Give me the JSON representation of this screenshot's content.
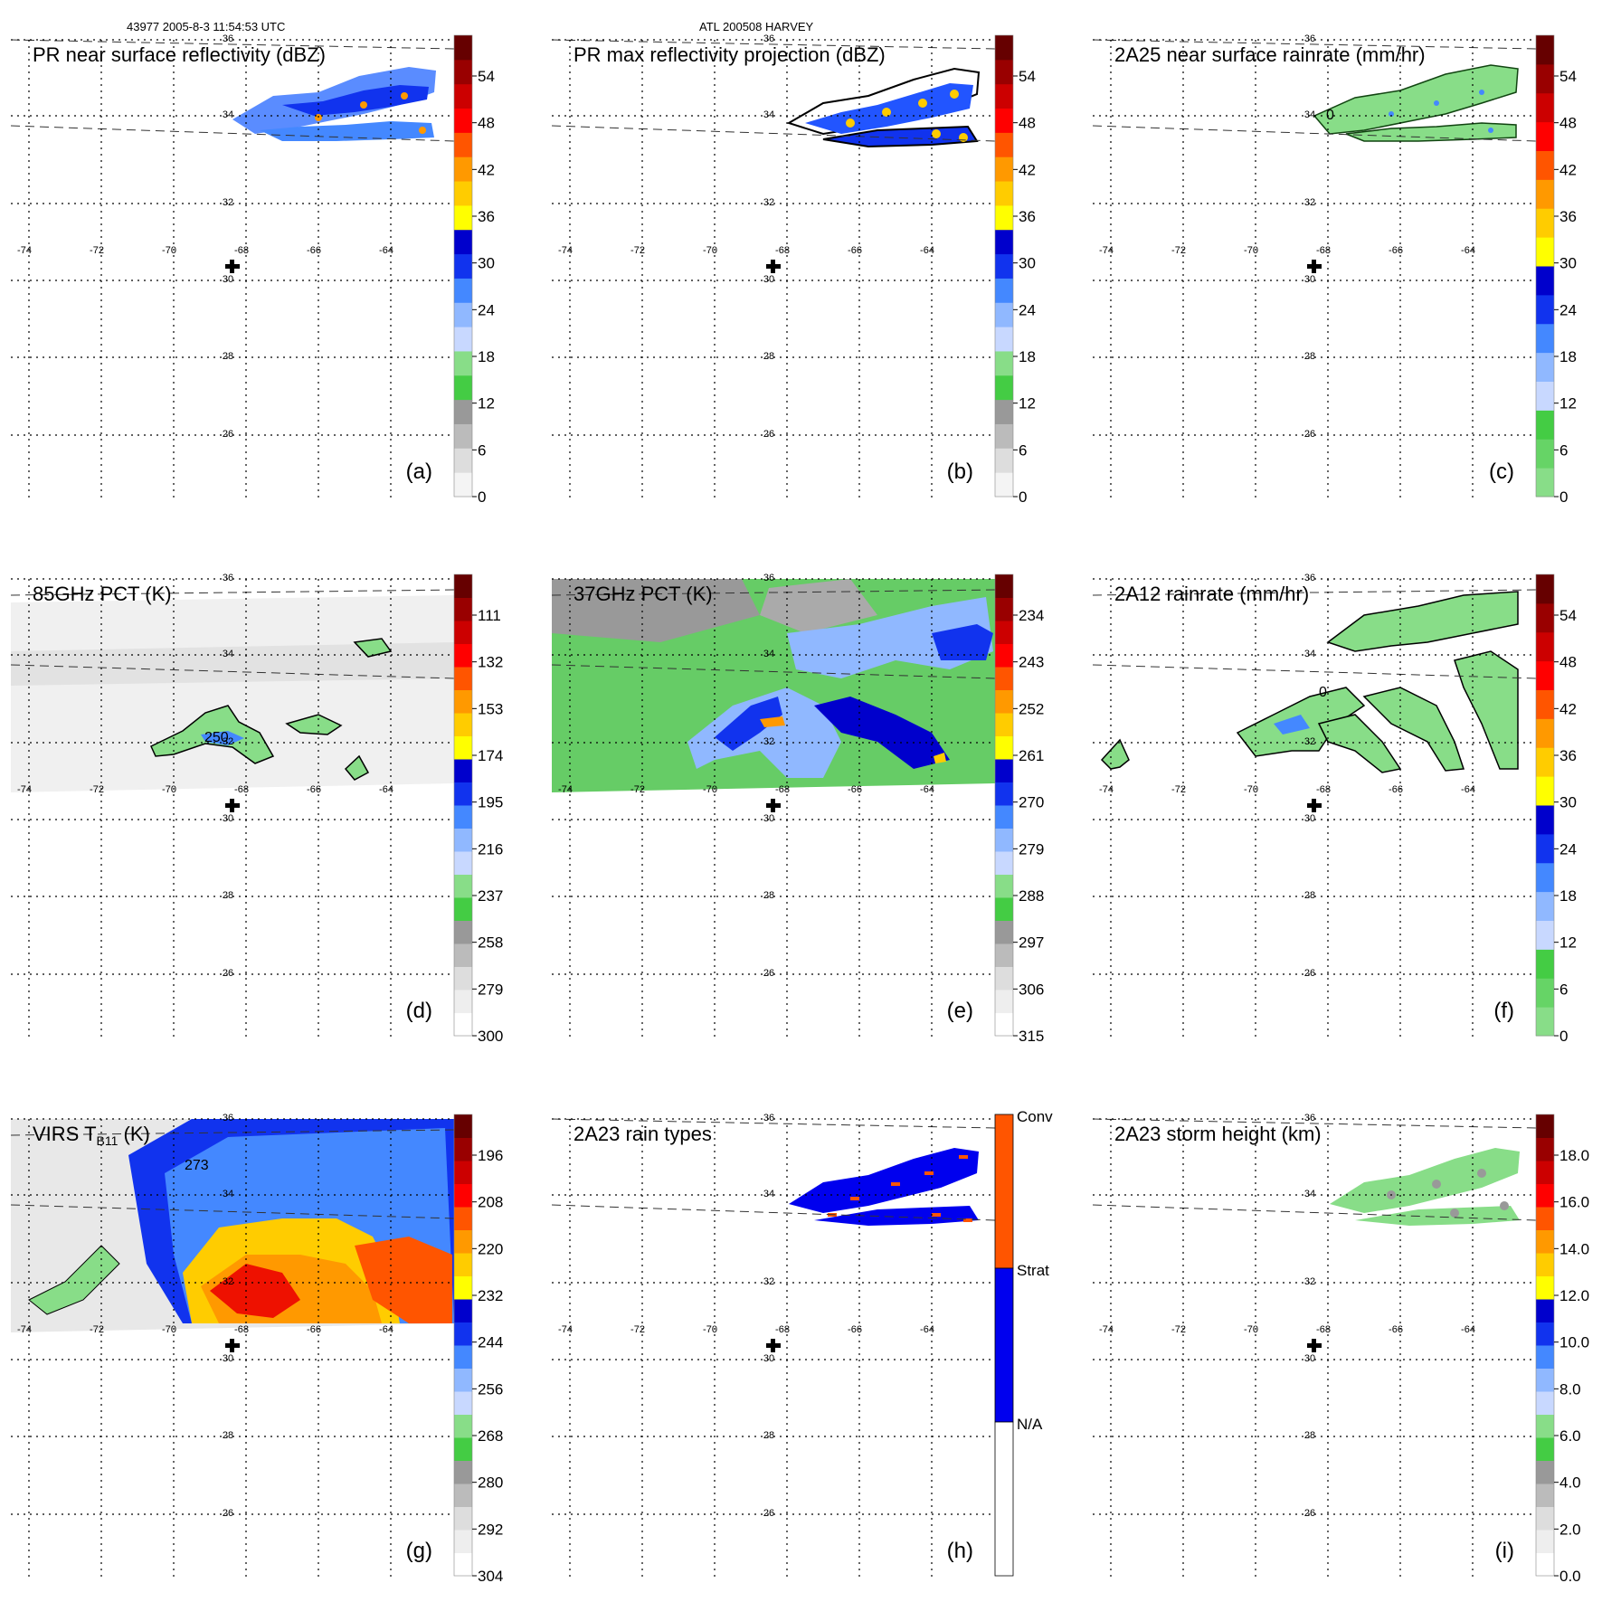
{
  "header": {
    "left": "43977 2005-8-3 11:54:53 UTC",
    "center": "ATL 200508 HARVEY"
  },
  "chart_data": [
    {
      "type": "heatmap",
      "id": "a",
      "title": "PR near surface reflectivity (dBZ)",
      "panel_label": "(a)",
      "x_ticks": [
        "-74",
        "-72",
        "-70",
        "-68",
        "-66",
        "-64"
      ],
      "y_ticks": [
        "36",
        "34",
        "32",
        "30",
        "28",
        "26"
      ],
      "colorbar": {
        "ticks": [
          "54",
          "48",
          "42",
          "36",
          "30",
          "24",
          "18",
          "12",
          "6",
          "0"
        ],
        "colors": [
          "#f4f4f4",
          "#dddddd",
          "#bbbbbb",
          "#999999",
          "#44cc44",
          "#88dd88",
          "#c8d8ff",
          "#90b8ff",
          "#4488ff",
          "#1133ee",
          "#0000cc",
          "#ffff00",
          "#ffcc00",
          "#ff9900",
          "#ff5500",
          "#ff0000",
          "#cc0000",
          "#990000",
          "#660000"
        ]
      },
      "features": {
        "swath": "pr",
        "contour": false,
        "center_cross": true
      }
    },
    {
      "type": "heatmap",
      "id": "b",
      "title": "PR max reflectivity projection (dBZ)",
      "panel_label": "(b)",
      "x_ticks": [
        "-74",
        "-72",
        "-70",
        "-68",
        "-66",
        "-64"
      ],
      "y_ticks": [
        "36",
        "34",
        "32",
        "30",
        "28",
        "26"
      ],
      "colorbar": {
        "ticks": [
          "54",
          "48",
          "42",
          "36",
          "30",
          "24",
          "18",
          "12",
          "6",
          "0"
        ],
        "colors": [
          "#f4f4f4",
          "#dddddd",
          "#bbbbbb",
          "#999999",
          "#44cc44",
          "#88dd88",
          "#c8d8ff",
          "#90b8ff",
          "#4488ff",
          "#1133ee",
          "#0000cc",
          "#ffff00",
          "#ffcc00",
          "#ff9900",
          "#ff5500",
          "#ff0000",
          "#cc0000",
          "#990000",
          "#660000"
        ]
      },
      "features": {
        "swath": "pr",
        "contour": true,
        "center_cross": true
      }
    },
    {
      "type": "heatmap",
      "id": "c",
      "title": "2A25 near surface rainrate (mm/hr)",
      "panel_label": "(c)",
      "x_ticks": [
        "-74",
        "-72",
        "-70",
        "-68",
        "-66",
        "-64"
      ],
      "y_ticks": [
        "36",
        "34",
        "32",
        "30",
        "28",
        "26"
      ],
      "colorbar": {
        "ticks": [
          "54",
          "48",
          "42",
          "36",
          "30",
          "24",
          "18",
          "12",
          "6",
          "0"
        ],
        "colors": [
          "#88dd88",
          "#66d466",
          "#44cc44",
          "#c8d8ff",
          "#90b8ff",
          "#4488ff",
          "#1133ee",
          "#0000cc",
          "#ffff00",
          "#ffcc00",
          "#ff9900",
          "#ff5500",
          "#ff0000",
          "#cc0000",
          "#990000",
          "#660000"
        ]
      },
      "features": {
        "swath": "pr",
        "contour": true,
        "contour_label": "0",
        "center_cross": true
      }
    },
    {
      "type": "heatmap",
      "id": "d",
      "title": "85GHz PCT (K)",
      "panel_label": "(d)",
      "x_ticks": [
        "-74",
        "-72",
        "-70",
        "-68",
        "-66",
        "-64"
      ],
      "y_ticks": [
        "36",
        "34",
        "32",
        "30",
        "28",
        "26"
      ],
      "colorbar": {
        "ticks": [
          "111",
          "132",
          "153",
          "174",
          "195",
          "216",
          "237",
          "258",
          "279",
          "300"
        ],
        "colors": [
          "#ffffff",
          "#eeeeee",
          "#dddddd",
          "#bbbbbb",
          "#999999",
          "#44cc44",
          "#88dd88",
          "#c8d8ff",
          "#90b8ff",
          "#4488ff",
          "#1133ee",
          "#0000cc",
          "#ffff00",
          "#ffcc00",
          "#ff9900",
          "#ff5500",
          "#ff0000",
          "#cc0000",
          "#990000",
          "#660000"
        ]
      },
      "features": {
        "swath": "tmi",
        "contour": true,
        "contour_label": "250",
        "center_cross": true
      }
    },
    {
      "type": "heatmap",
      "id": "e",
      "title": "37GHz PCT (K)",
      "panel_label": "(e)",
      "x_ticks": [
        "-74",
        "-72",
        "-70",
        "-68",
        "-66",
        "-64"
      ],
      "y_ticks": [
        "36",
        "34",
        "32",
        "30",
        "28",
        "26"
      ],
      "colorbar": {
        "ticks": [
          "234",
          "243",
          "252",
          "261",
          "270",
          "279",
          "288",
          "297",
          "306",
          "315"
        ],
        "colors": [
          "#ffffff",
          "#eeeeee",
          "#dddddd",
          "#bbbbbb",
          "#999999",
          "#44cc44",
          "#88dd88",
          "#c8d8ff",
          "#90b8ff",
          "#4488ff",
          "#1133ee",
          "#0000cc",
          "#ffff00",
          "#ffcc00",
          "#ff9900",
          "#ff5500",
          "#ff0000",
          "#cc0000",
          "#990000",
          "#660000"
        ]
      },
      "features": {
        "swath": "tmi",
        "contour": false,
        "center_cross": true
      }
    },
    {
      "type": "heatmap",
      "id": "f",
      "title": "2A12 rainrate (mm/hr)",
      "panel_label": "(f)",
      "x_ticks": [
        "-74",
        "-72",
        "-70",
        "-68",
        "-66",
        "-64"
      ],
      "y_ticks": [
        "36",
        "34",
        "32",
        "30",
        "28",
        "26"
      ],
      "colorbar": {
        "ticks": [
          "54",
          "48",
          "42",
          "36",
          "30",
          "24",
          "18",
          "12",
          "6",
          "0"
        ],
        "colors": [
          "#88dd88",
          "#66d466",
          "#44cc44",
          "#c8d8ff",
          "#90b8ff",
          "#4488ff",
          "#1133ee",
          "#0000cc",
          "#ffff00",
          "#ffcc00",
          "#ff9900",
          "#ff5500",
          "#ff0000",
          "#cc0000",
          "#990000",
          "#660000"
        ]
      },
      "features": {
        "swath": "tmi",
        "contour": true,
        "contour_label": "0",
        "center_cross": true
      }
    },
    {
      "type": "heatmap",
      "id": "g",
      "title": "VIRS T",
      "title_sub": "B11",
      "title_unit": " (K)",
      "panel_label": "(g)",
      "x_ticks": [
        "-74",
        "-72",
        "-70",
        "-68",
        "-66",
        "-64"
      ],
      "y_ticks": [
        "36",
        "34",
        "32",
        "30",
        "28",
        "26"
      ],
      "colorbar": {
        "ticks": [
          "196",
          "208",
          "220",
          "232",
          "244",
          "256",
          "268",
          "280",
          "292",
          "304"
        ],
        "colors": [
          "#ffffff",
          "#eeeeee",
          "#dddddd",
          "#bbbbbb",
          "#999999",
          "#44cc44",
          "#88dd88",
          "#c8d8ff",
          "#90b8ff",
          "#4488ff",
          "#1133ee",
          "#0000cc",
          "#ffff00",
          "#ffcc00",
          "#ff9900",
          "#ff5500",
          "#ff0000",
          "#cc0000",
          "#990000",
          "#660000"
        ]
      },
      "features": {
        "swath": "tmi",
        "contour": true,
        "contour_label": "273",
        "center_cross": true
      }
    },
    {
      "type": "heatmap",
      "id": "h",
      "title": "2A23 rain types",
      "panel_label": "(h)",
      "x_ticks": [
        "-74",
        "-72",
        "-70",
        "-68",
        "-66",
        "-64"
      ],
      "y_ticks": [
        "36",
        "34",
        "32",
        "30",
        "28",
        "26"
      ],
      "colorbar": {
        "ticks": [
          "Conv",
          "Strat",
          "N/A"
        ],
        "categorical": true,
        "colors": [
          "#ffffff",
          "#0000ee",
          "#ff5500"
        ]
      },
      "features": {
        "swath": "pr",
        "contour": false,
        "center_cross": true
      }
    },
    {
      "type": "heatmap",
      "id": "i",
      "title": "2A23 storm height (km)",
      "panel_label": "(i)",
      "x_ticks": [
        "-74",
        "-72",
        "-70",
        "-68",
        "-66",
        "-64"
      ],
      "y_ticks": [
        "36",
        "34",
        "32",
        "30",
        "28",
        "26"
      ],
      "colorbar": {
        "ticks": [
          "18.0",
          "16.0",
          "14.0",
          "12.0",
          "10.0",
          "8.0",
          "6.0",
          "4.0",
          "2.0",
          "0.0"
        ],
        "colors": [
          "#ffffff",
          "#eeeeee",
          "#dddddd",
          "#bbbbbb",
          "#999999",
          "#44cc44",
          "#88dd88",
          "#c8d8ff",
          "#90b8ff",
          "#4488ff",
          "#1133ee",
          "#0000cc",
          "#ffff00",
          "#ffcc00",
          "#ff9900",
          "#ff5500",
          "#ff0000",
          "#cc0000",
          "#990000",
          "#660000"
        ]
      },
      "features": {
        "swath": "pr",
        "contour": false,
        "center_cross": true
      }
    }
  ]
}
